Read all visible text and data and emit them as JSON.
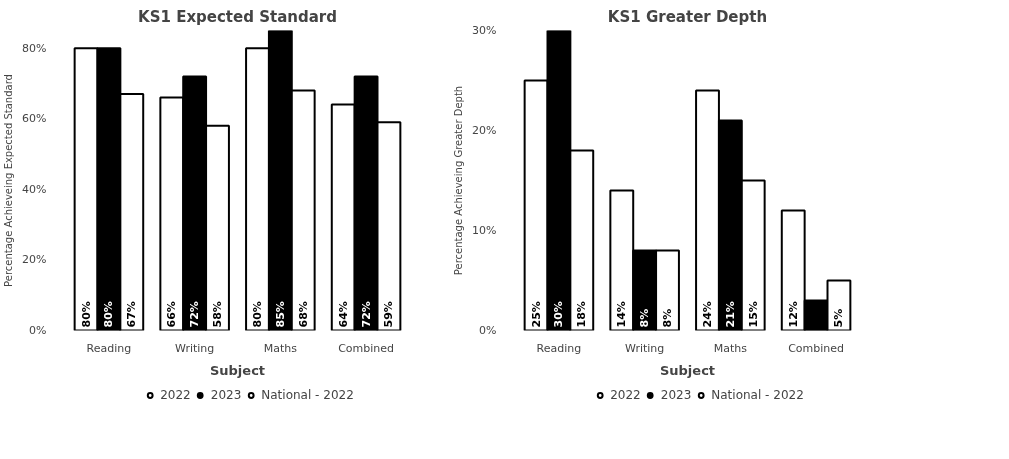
{
  "chart_data": [
    {
      "type": "bar",
      "title": "KS1 Expected Standard",
      "xlabel": "Subject",
      "ylabel": "Percentage Achieveing Expected Standard",
      "categories": [
        "Reading",
        "Writing",
        "Maths",
        "Combined"
      ],
      "ylim": [
        0,
        85
      ],
      "yticks": [
        {
          "value": 0,
          "label": "0%"
        },
        {
          "value": 20,
          "label": "20%"
        },
        {
          "value": 40,
          "label": "40%"
        },
        {
          "value": 60,
          "label": "60%"
        },
        {
          "value": 80,
          "label": "80%"
        }
      ],
      "grid": false,
      "legend": "bottom",
      "series": [
        {
          "name": "2022",
          "color": "#ffffff",
          "values": [
            80,
            66,
            80,
            64
          ],
          "value_labels": [
            "80%",
            "66%",
            "80%",
            "64%"
          ]
        },
        {
          "name": "2023",
          "color": "#000000",
          "values": [
            80,
            72,
            85,
            72
          ],
          "value_labels": [
            "80%",
            "72%",
            "85%",
            "72%"
          ]
        },
        {
          "name": "National - 2022",
          "color": "#ffffff",
          "values": [
            67,
            58,
            68,
            59
          ],
          "value_labels": [
            "67%",
            "58%",
            "68%",
            "59%"
          ]
        }
      ]
    },
    {
      "type": "bar",
      "title": "KS1 Greater Depth",
      "xlabel": "Subject",
      "ylabel": "Percentage Achieveing Greater Depth",
      "categories": [
        "Reading",
        "Writing",
        "Maths",
        "Combined"
      ],
      "ylim": [
        0,
        30
      ],
      "yticks": [
        {
          "value": 0,
          "label": "0%"
        },
        {
          "value": 10,
          "label": "10%"
        },
        {
          "value": 20,
          "label": "20%"
        },
        {
          "value": 30,
          "label": "30%"
        }
      ],
      "grid": false,
      "legend": "bottom",
      "series": [
        {
          "name": "2022",
          "color": "#ffffff",
          "values": [
            25,
            14,
            24,
            12
          ],
          "value_labels": [
            "25%",
            "14%",
            "24%",
            "12%"
          ]
        },
        {
          "name": "2023",
          "color": "#000000",
          "values": [
            30,
            8,
            21,
            3
          ],
          "value_labels": [
            "30%",
            "8%",
            "21%",
            null
          ]
        },
        {
          "name": "National - 2022",
          "color": "#ffffff",
          "values": [
            18,
            8,
            15,
            5
          ],
          "value_labels": [
            "18%",
            "8%",
            "15%",
            "5%"
          ]
        }
      ]
    }
  ]
}
